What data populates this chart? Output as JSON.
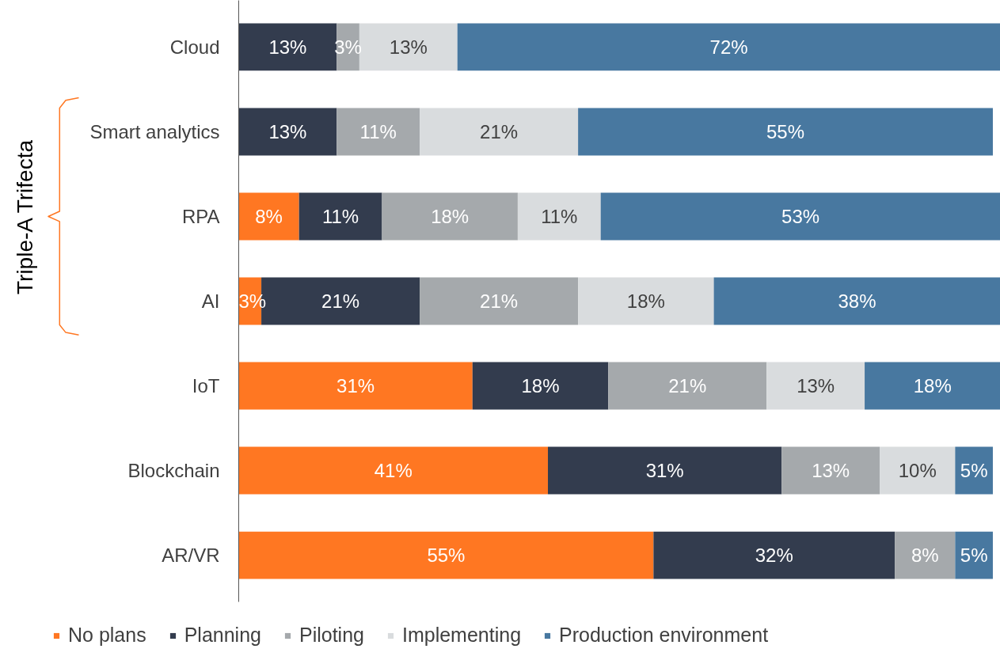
{
  "chart_data": {
    "type": "bar",
    "orientation": "horizontal",
    "stacked": true,
    "legend": "bottom",
    "grid": false,
    "categories": [
      "Cloud",
      "Smart analytics",
      "RPA",
      "AI",
      "IoT",
      "Blockchain",
      "AR/VR"
    ],
    "series": [
      {
        "name": "No plans",
        "color": "#ff7722",
        "values": [
          null,
          null,
          8,
          3,
          31,
          41,
          55
        ],
        "value_labels": [
          null,
          null,
          "8%",
          "3%",
          "31%",
          "41%",
          "55%"
        ]
      },
      {
        "name": "Planning",
        "color": "#333c4e",
        "values": [
          13,
          13,
          11,
          21,
          18,
          31,
          32
        ],
        "value_labels": [
          "13%",
          "13%",
          "11%",
          "21%",
          "18%",
          "31%",
          "32%"
        ]
      },
      {
        "name": "Piloting",
        "color": "#a5a9ac",
        "values": [
          3,
          11,
          18,
          21,
          21,
          13,
          8
        ],
        "value_labels": [
          "3%",
          "11%",
          "18%",
          "21%",
          "21%",
          "13%",
          "8%"
        ]
      },
      {
        "name": "Implementing",
        "color": "#d9dcde",
        "values": [
          13,
          21,
          11,
          18,
          13,
          10,
          null
        ],
        "value_labels": [
          "13%",
          "21%",
          "11%",
          "18%",
          "13%",
          "10%",
          null
        ]
      },
      {
        "name": "Production environment",
        "color": "#4878a0",
        "values": [
          72,
          55,
          53,
          38,
          18,
          5,
          5
        ],
        "value_labels": [
          "72%",
          "55%",
          "53%",
          "38%",
          "18%",
          "5%",
          "5%"
        ]
      }
    ],
    "annotations": [
      "Triple-A Trifecta"
    ]
  }
}
